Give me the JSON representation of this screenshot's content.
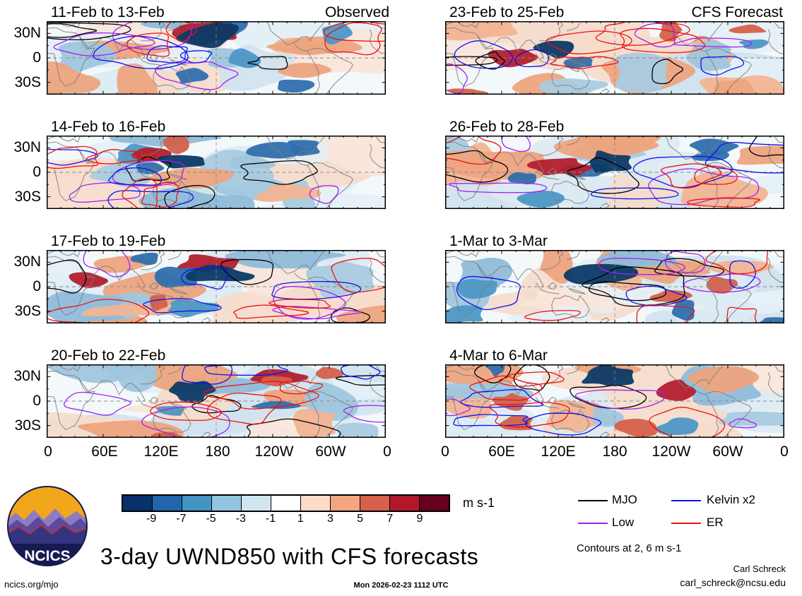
{
  "title": "3-day UWND850 with CFS forecasts",
  "logo_text": "NCICS",
  "panels": [
    {
      "label": "11-Feb to 13-Feb",
      "annotation": "Observed",
      "column": "left"
    },
    {
      "label": "14-Feb to 16-Feb",
      "annotation": "",
      "column": "left"
    },
    {
      "label": "17-Feb to 19-Feb",
      "annotation": "",
      "column": "left"
    },
    {
      "label": "20-Feb to 22-Feb",
      "annotation": "",
      "column": "left"
    },
    {
      "label": "23-Feb to 25-Feb",
      "annotation": "CFS Forecast",
      "column": "right"
    },
    {
      "label": "26-Feb to 28-Feb",
      "annotation": "",
      "column": "right"
    },
    {
      "label": "1-Mar to 3-Mar",
      "annotation": "",
      "column": "right"
    },
    {
      "label": "4-Mar to 6-Mar",
      "annotation": "",
      "column": "right"
    }
  ],
  "axes": {
    "y_ticks": [
      "30N",
      "0",
      "30S"
    ],
    "x_ticks": [
      "0",
      "60E",
      "120E",
      "180",
      "120W",
      "60W",
      "0"
    ]
  },
  "colorbar": {
    "tick_labels": [
      "-9",
      "-7",
      "-5",
      "-3",
      "-1",
      "1",
      "3",
      "5",
      "7",
      "9"
    ],
    "colors": [
      "#08306b",
      "#2166ac",
      "#4393c3",
      "#92c5de",
      "#d1e5f0",
      "#ffffff",
      "#fddbc7",
      "#f4a582",
      "#d6604d",
      "#b2182b",
      "#67001f"
    ],
    "units": "m s-1"
  },
  "legend": {
    "items": [
      {
        "label": "MJO",
        "color": "#000000"
      },
      {
        "label": "Kelvin x2",
        "color": "#1010ee"
      },
      {
        "label": "Low",
        "color": "#a020f0"
      },
      {
        "label": "ER",
        "color": "#ee1111"
      }
    ],
    "note": "Contours at 2, 6 m s-1"
  },
  "footer": {
    "left": "ncics.org/mjo",
    "center": "Mon 2026-02-23 1112 UTC",
    "credit_name": "Carl Schreck",
    "credit_email": "carl_schreck@ncsu.edu"
  },
  "chart_data": {
    "type": "heatmap",
    "title": "3-day UWND850 with CFS forecasts",
    "description": "Eight lat-lon map panels of 850 hPa zonal wind anomaly (shaded, m s-1) with wave-filtered contours; left column observed, right column CFS forecast.",
    "panels": [
      {
        "label": "11-Feb to 13-Feb",
        "group": "Observed"
      },
      {
        "label": "14-Feb to 16-Feb",
        "group": "Observed"
      },
      {
        "label": "17-Feb to 19-Feb",
        "group": "Observed"
      },
      {
        "label": "20-Feb to 22-Feb",
        "group": "Observed"
      },
      {
        "label": "23-Feb to 25-Feb",
        "group": "CFS Forecast"
      },
      {
        "label": "26-Feb to 28-Feb",
        "group": "CFS Forecast"
      },
      {
        "label": "1-Mar to 3-Mar",
        "group": "CFS Forecast"
      },
      {
        "label": "4-Mar to 6-Mar",
        "group": "CFS Forecast"
      }
    ],
    "x": {
      "label": "longitude",
      "tick_labels": [
        "0",
        "60E",
        "120E",
        "180",
        "120W",
        "60W",
        "0"
      ],
      "range_deg": [
        0,
        360
      ]
    },
    "y": {
      "label": "latitude",
      "tick_labels": [
        "30N",
        "0",
        "30S"
      ],
      "range_deg": [
        -45,
        45
      ]
    },
    "colorbar": {
      "levels": [
        -9,
        -7,
        -5,
        -3,
        -1,
        1,
        3,
        5,
        7,
        9
      ],
      "units": "m s-1",
      "palette": "blue-white-red"
    },
    "contour_series": [
      {
        "name": "MJO",
        "color": "#000000"
      },
      {
        "name": "Low",
        "color": "#a020f0"
      },
      {
        "name": "Kelvin x2",
        "color": "#1010ee"
      },
      {
        "name": "ER",
        "color": "#ee1111"
      }
    ],
    "contours_at": "2, 6 m s-1",
    "legend_position": "bottom-right",
    "grid": "dashed equator and dateline reference lines"
  }
}
